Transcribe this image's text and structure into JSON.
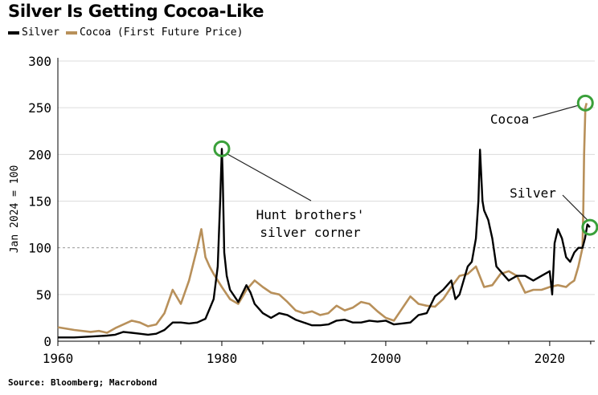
{
  "chart_data": {
    "type": "line",
    "title": "Silver Is Getting Cocoa-Like",
    "ylabel": "Jan 2024 = 100",
    "xlabel": "",
    "xlim": [
      1960,
      2025.5
    ],
    "ylim": [
      0,
      300
    ],
    "xticks": [
      1960,
      1980,
      2000,
      2020
    ],
    "yticks": [
      0,
      50,
      100,
      150,
      200,
      250,
      300
    ],
    "reference_line": 100,
    "colors": {
      "Silver": "#000000",
      "Cocoa (First Future Price)": "#b8905a",
      "highlight": "#3aa03a",
      "grid": "#dcdcdc"
    },
    "series": [
      {
        "name": "Silver",
        "x": [
          1960,
          1962,
          1964,
          1966,
          1967,
          1968,
          1969,
          1970,
          1971,
          1972,
          1973,
          1974,
          1975,
          1976,
          1977,
          1978,
          1979,
          1979.5,
          1979.8,
          1980.0,
          1980.1,
          1980.3,
          1980.6,
          1981,
          1982,
          1983,
          1983.5,
          1984,
          1985,
          1986,
          1987,
          1988,
          1989,
          1990,
          1991,
          1992,
          1993,
          1994,
          1995,
          1996,
          1997,
          1998,
          1999,
          2000,
          2001,
          2002,
          2003,
          2004,
          2005,
          2006,
          2007,
          2008,
          2008.5,
          2009,
          2010,
          2010.5,
          2011,
          2011.3,
          2011.5,
          2011.8,
          2012,
          2012.5,
          2013,
          2013.5,
          2014,
          2015,
          2016,
          2017,
          2018,
          2019,
          2020,
          2020.3,
          2020.6,
          2021,
          2021.5,
          2022,
          2022.5,
          2023,
          2023.5,
          2024,
          2024.3,
          2024.6,
          2024.9
        ],
        "values": [
          4,
          4,
          5,
          6,
          7,
          10,
          9,
          8,
          7,
          8,
          12,
          20,
          20,
          19,
          20,
          24,
          45,
          80,
          150,
          206,
          180,
          95,
          70,
          55,
          42,
          60,
          52,
          40,
          30,
          25,
          30,
          28,
          23,
          20,
          17,
          17,
          18,
          22,
          23,
          20,
          20,
          22,
          21,
          22,
          18,
          19,
          20,
          28,
          30,
          48,
          55,
          65,
          45,
          50,
          80,
          85,
          110,
          150,
          205,
          150,
          140,
          130,
          110,
          80,
          75,
          65,
          70,
          70,
          65,
          70,
          75,
          50,
          105,
          120,
          110,
          90,
          85,
          95,
          100,
          100,
          110,
          125,
          122
        ],
        "annotations": [
          {
            "label": "Hunt brothers' silver corner",
            "x": 1980.0,
            "y": 206
          },
          {
            "label": "Silver",
            "x": 2024.9,
            "y": 122
          }
        ]
      },
      {
        "name": "Cocoa (First Future Price)",
        "x": [
          1960,
          1962,
          1964,
          1965,
          1966,
          1967,
          1968,
          1969,
          1970,
          1971,
          1972,
          1973,
          1974,
          1975,
          1976,
          1977,
          1977.5,
          1978,
          1978.5,
          1979,
          1980,
          1981,
          1982,
          1983,
          1984,
          1985,
          1986,
          1987,
          1988,
          1989,
          1990,
          1991,
          1992,
          1993,
          1994,
          1995,
          1996,
          1997,
          1998,
          1999,
          2000,
          2001,
          2002,
          2003,
          2004,
          2005,
          2006,
          2007,
          2008,
          2009,
          2010,
          2011,
          2012,
          2013,
          2014,
          2015,
          2016,
          2017,
          2018,
          2019,
          2020,
          2021,
          2022,
          2022.5,
          2023,
          2023.5,
          2024,
          2024.1,
          2024.2,
          2024.35,
          2024.5
        ],
        "values": [
          15,
          12,
          10,
          11,
          9,
          14,
          18,
          22,
          20,
          16,
          18,
          30,
          55,
          40,
          65,
          100,
          120,
          90,
          80,
          72,
          58,
          45,
          40,
          55,
          65,
          58,
          52,
          50,
          42,
          33,
          30,
          32,
          28,
          30,
          38,
          33,
          36,
          42,
          40,
          32,
          25,
          22,
          35,
          48,
          40,
          38,
          37,
          45,
          58,
          70,
          72,
          80,
          58,
          60,
          72,
          75,
          70,
          52,
          55,
          55,
          58,
          60,
          58,
          62,
          65,
          80,
          100,
          140,
          200,
          250,
          255
        ],
        "annotations": [
          {
            "label": "Cocoa",
            "x": 2024.35,
            "y": 255
          }
        ]
      }
    ]
  }
}
